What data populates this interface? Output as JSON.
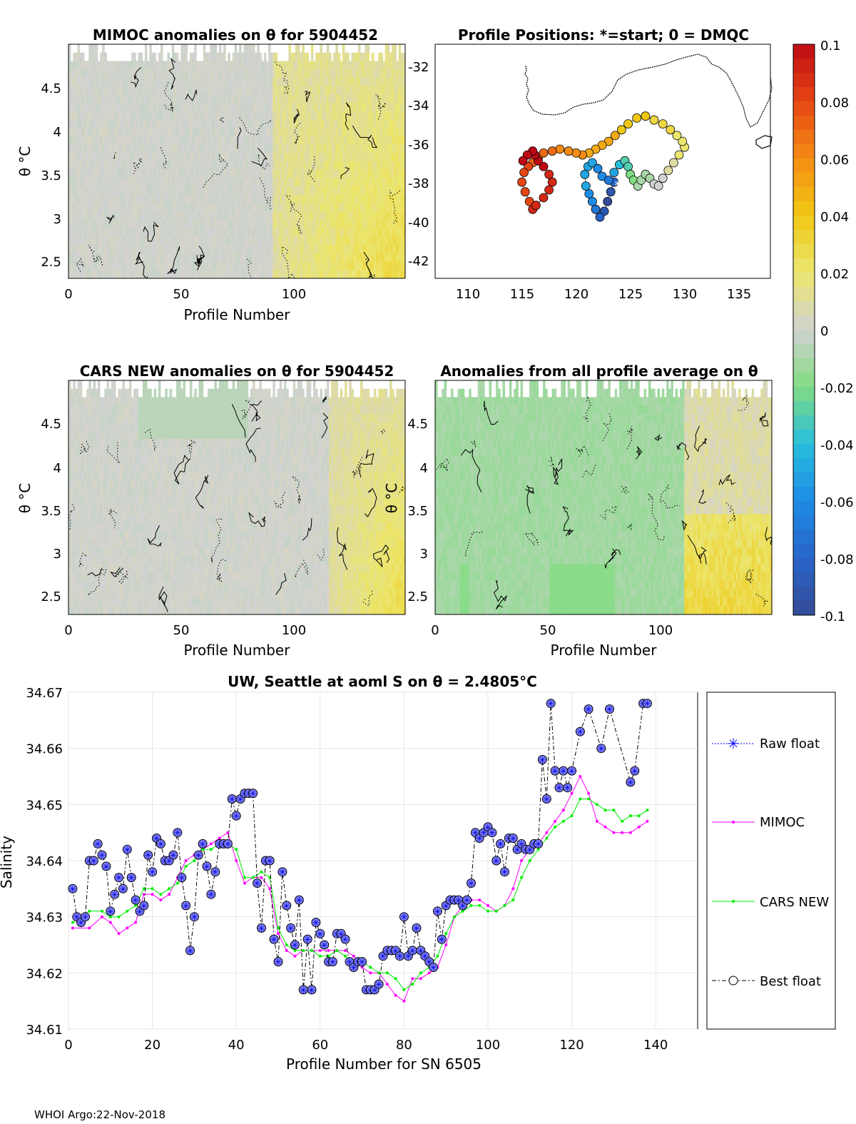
{
  "footer": "WHOI Argo:22-Nov-2018",
  "colorbar": {
    "ticks": [
      "0.1",
      "0.08",
      "0.06",
      "0.04",
      "0.02",
      "0",
      "-0.02",
      "-0.04",
      "-0.06",
      "-0.08",
      "-0.1"
    ],
    "range": [
      -0.1,
      0.1
    ]
  },
  "panels": {
    "mimoc": {
      "title": "MIMOC anomalies on θ  for 5904452",
      "ylabel": "θ °C",
      "xlabel": "Profile Number",
      "xticks": [
        "0",
        "50",
        "100"
      ],
      "yticks": [
        "4.5",
        "4",
        "3.5",
        "3",
        "2.5"
      ]
    },
    "map": {
      "title": "Profile Positions: *=start; 0 = DMQC",
      "xticks": [
        "110",
        "115",
        "120",
        "125",
        "130",
        "135"
      ],
      "yticks": [
        "-32",
        "-34",
        "-36",
        "-38",
        "-40",
        "-42"
      ]
    },
    "cars": {
      "title": "CARS NEW anomalies on θ for 5904452",
      "ylabel": "θ °C",
      "xlabel": "Profile Number",
      "xticks": [
        "0",
        "50",
        "100"
      ],
      "yticks": [
        "4.5",
        "4",
        "3.5",
        "3",
        "2.5"
      ]
    },
    "avg": {
      "title": "Anomalies from all profile average on θ",
      "ylabel": "θ °C",
      "xlabel": "Profile Number",
      "xticks": [
        "0",
        "50",
        "100"
      ],
      "yticks": [
        "4.5",
        "4",
        "3.5",
        "3",
        "2.5"
      ]
    }
  },
  "legend": {
    "raw": "Raw float",
    "mimoc": "MIMOC",
    "cars": "CARS NEW",
    "best": "Best float"
  },
  "colors": {
    "raw": "#0000ff",
    "mimoc": "#ff00ff",
    "cars": "#00ee00",
    "best": "#000000",
    "marker_fill": "#8080ff"
  },
  "chart_data": [
    {
      "type": "line",
      "title": "UW, Seattle at aoml S on θ = 2.4805°C",
      "xlabel": "Profile Number for SN 6505",
      "ylabel": "Salinity",
      "xlim": [
        0,
        150
      ],
      "ylim": [
        34.61,
        34.67
      ],
      "xticks": [
        "0",
        "20",
        "40",
        "60",
        "80",
        "100",
        "120",
        "140"
      ],
      "yticks": [
        "34.67",
        "34.66",
        "34.65",
        "34.64",
        "34.63",
        "34.62",
        "34.61"
      ],
      "grid": true,
      "legend_position": "right",
      "series": [
        {
          "name": "Best float",
          "x": [
            1,
            2,
            3,
            4,
            5,
            6,
            7,
            8,
            9,
            10,
            11,
            12,
            13,
            14,
            15,
            16,
            17,
            18,
            19,
            20,
            21,
            22,
            23,
            24,
            25,
            26,
            27,
            28,
            29,
            30,
            31,
            32,
            33,
            34,
            35,
            36,
            37,
            38,
            39,
            40,
            41,
            42,
            43,
            44,
            45,
            46,
            47,
            48,
            49,
            50,
            51,
            52,
            53,
            54,
            55,
            56,
            57,
            58,
            59,
            60,
            61,
            62,
            63,
            64,
            65,
            66,
            67,
            68,
            69,
            70,
            71,
            72,
            73,
            74,
            75,
            76,
            77,
            78,
            79,
            80,
            81,
            82,
            83,
            84,
            85,
            86,
            87,
            88,
            89,
            90,
            91,
            92,
            93,
            94,
            95,
            96,
            97,
            98,
            99,
            100,
            101,
            102,
            103,
            104,
            105,
            106,
            107,
            108,
            109,
            110,
            111,
            112,
            113,
            114,
            115,
            116,
            117,
            118,
            119,
            120,
            122,
            124,
            127,
            129,
            134,
            135,
            137,
            138
          ],
          "values": [
            34.635,
            34.63,
            34.629,
            34.63,
            34.64,
            34.64,
            34.643,
            34.641,
            34.639,
            34.631,
            34.634,
            34.637,
            34.635,
            34.642,
            34.637,
            34.633,
            34.631,
            34.632,
            34.641,
            34.638,
            34.644,
            34.643,
            34.64,
            34.64,
            34.641,
            34.645,
            34.637,
            34.632,
            34.624,
            34.63,
            34.641,
            34.643,
            34.639,
            34.634,
            34.638,
            34.643,
            34.643,
            34.643,
            34.651,
            34.648,
            34.651,
            34.652,
            34.652,
            34.652,
            34.636,
            34.628,
            34.64,
            34.64,
            34.626,
            34.622,
            34.638,
            34.632,
            34.628,
            34.625,
            34.633,
            34.617,
            34.626,
            34.617,
            34.629,
            34.627,
            34.625,
            34.622,
            34.622,
            34.627,
            34.627,
            34.626,
            34.622,
            34.621,
            34.622,
            34.622,
            34.617,
            34.617,
            34.617,
            34.618,
            34.623,
            34.624,
            34.624,
            34.624,
            34.623,
            34.63,
            34.623,
            34.624,
            34.628,
            34.624,
            34.623,
            34.622,
            34.621,
            34.631,
            34.626,
            34.632,
            34.633,
            34.633,
            34.633,
            34.632,
            34.633,
            34.636,
            34.645,
            34.644,
            34.645,
            34.646,
            34.645,
            34.64,
            34.643,
            34.638,
            34.644,
            34.644,
            34.642,
            34.643,
            34.642,
            34.642,
            34.643,
            34.643,
            34.658,
            34.651,
            34.668,
            34.656,
            34.653,
            34.656,
            34.653,
            34.656,
            34.663,
            34.667,
            34.66,
            34.667,
            34.654,
            34.656,
            34.668,
            34.668
          ]
        },
        {
          "name": "Raw float",
          "note": "identical to Best float"
        },
        {
          "name": "MIMOC",
          "x": [
            1,
            5,
            8,
            10,
            12,
            14,
            16,
            18,
            20,
            22,
            24,
            26,
            28,
            30,
            32,
            34,
            36,
            38,
            40,
            42,
            44,
            46,
            48,
            50,
            52,
            54,
            56,
            58,
            60,
            62,
            64,
            66,
            68,
            70,
            72,
            74,
            76,
            78,
            80,
            82,
            84,
            86,
            88,
            90,
            92,
            94,
            96,
            98,
            100,
            102,
            104,
            106,
            108,
            110,
            112,
            114,
            116,
            118,
            120,
            122,
            124,
            126,
            128,
            130,
            132,
            134,
            136,
            138
          ],
          "values": [
            34.628,
            34.628,
            34.63,
            34.629,
            34.627,
            34.628,
            34.629,
            34.634,
            34.634,
            34.633,
            34.634,
            34.637,
            34.64,
            34.641,
            34.642,
            34.643,
            34.644,
            34.645,
            34.64,
            34.636,
            34.637,
            34.637,
            34.635,
            34.627,
            34.624,
            34.623,
            34.624,
            34.624,
            34.624,
            34.624,
            34.624,
            34.624,
            34.623,
            34.621,
            34.62,
            34.62,
            34.618,
            34.616,
            34.615,
            34.619,
            34.619,
            34.62,
            34.621,
            34.625,
            34.63,
            34.632,
            34.633,
            34.633,
            34.632,
            34.631,
            34.632,
            34.635,
            34.64,
            34.642,
            34.643,
            34.645,
            34.647,
            34.649,
            34.652,
            34.655,
            34.652,
            34.647,
            34.646,
            34.645,
            34.645,
            34.645,
            34.646,
            34.647
          ]
        },
        {
          "name": "CARS NEW",
          "x": [
            1,
            5,
            8,
            10,
            12,
            14,
            16,
            18,
            20,
            22,
            24,
            26,
            28,
            30,
            32,
            34,
            36,
            38,
            40,
            42,
            44,
            46,
            48,
            50,
            52,
            54,
            56,
            58,
            60,
            62,
            64,
            66,
            68,
            70,
            72,
            74,
            76,
            78,
            80,
            82,
            84,
            86,
            88,
            90,
            92,
            94,
            96,
            98,
            100,
            102,
            104,
            106,
            108,
            110,
            112,
            114,
            116,
            118,
            120,
            122,
            124,
            126,
            128,
            130,
            132,
            134,
            136,
            138
          ],
          "values": [
            34.629,
            34.631,
            34.631,
            34.63,
            34.63,
            34.631,
            34.632,
            34.635,
            34.635,
            34.634,
            34.635,
            34.636,
            34.639,
            34.64,
            34.642,
            34.642,
            34.643,
            34.643,
            34.642,
            34.637,
            34.637,
            34.638,
            34.637,
            34.628,
            34.625,
            34.624,
            34.624,
            34.624,
            34.623,
            34.623,
            34.624,
            34.623,
            34.622,
            34.622,
            34.621,
            34.62,
            34.62,
            34.619,
            34.617,
            34.618,
            34.62,
            34.621,
            34.623,
            34.627,
            34.63,
            34.631,
            34.632,
            34.632,
            34.631,
            34.631,
            34.632,
            34.633,
            34.637,
            34.64,
            34.642,
            34.644,
            34.646,
            34.647,
            34.648,
            34.651,
            34.651,
            34.65,
            34.649,
            34.649,
            34.647,
            34.648,
            34.648,
            34.649
          ]
        }
      ]
    },
    {
      "type": "scatter",
      "title": "Profile Positions: *=start; 0 = DMQC",
      "xlim": [
        107,
        138
      ],
      "ylim": [
        -43,
        -31
      ],
      "note": "float track near south coast of Australia, colored by anomaly",
      "lon": [
        123.5,
        123.2,
        122.9,
        122.6,
        122.2,
        121.8,
        121.5,
        121.2,
        120.9,
        120.8,
        121.1,
        121.5,
        122.0,
        122.4,
        123.0,
        123.5,
        124.0,
        124.5,
        124.8,
        125.0,
        125.3,
        125.7,
        126.0,
        126.4,
        126.8,
        127.2,
        127.6,
        128.0,
        128.5,
        129.0,
        129.5,
        130.0,
        129.8,
        129.3,
        128.7,
        128.0,
        127.2,
        126.4,
        125.6,
        124.8,
        124.2,
        123.6,
        123.0,
        122.4,
        121.8,
        121.2,
        120.6,
        120.0,
        119.3,
        118.5,
        117.8,
        117.0,
        116.5,
        116.0,
        115.6,
        115.2,
        115.0,
        115.3,
        115.7,
        116.0,
        116.3,
        117.0,
        117.5,
        117.8,
        117.5,
        117.0,
        116.5,
        116.2,
        116.0,
        115.5,
        115.1
      ],
      "lat": [
        -38.0,
        -38.5,
        -39.0,
        -39.5,
        -39.8,
        -39.4,
        -39.0,
        -38.6,
        -38.2,
        -37.6,
        -37.2,
        -37.0,
        -37.3,
        -37.7,
        -37.9,
        -37.5,
        -37.1,
        -36.9,
        -37.2,
        -37.6,
        -37.9,
        -38.2,
        -37.9,
        -37.6,
        -37.8,
        -38.1,
        -38.2,
        -37.8,
        -37.4,
        -37.0,
        -36.6,
        -36.2,
        -35.9,
        -35.6,
        -35.3,
        -35.0,
        -34.8,
        -34.6,
        -34.7,
        -35.0,
        -35.3,
        -35.6,
        -35.9,
        -36.1,
        -36.3,
        -36.5,
        -36.6,
        -36.5,
        -36.4,
        -36.3,
        -36.4,
        -36.5,
        -36.8,
        -37.0,
        -37.2,
        -37.5,
        -38.0,
        -38.5,
        -39.0,
        -39.4,
        -39.2,
        -38.8,
        -38.4,
        -38.0,
        -37.6,
        -37.2,
        -36.9,
        -36.6,
        -36.4,
        -36.6,
        -36.9
      ],
      "anomaly": [
        -0.08,
        -0.09,
        -0.1,
        -0.09,
        -0.08,
        -0.07,
        -0.06,
        -0.06,
        -0.05,
        -0.05,
        -0.05,
        -0.05,
        -0.06,
        -0.06,
        -0.07,
        -0.05,
        -0.04,
        -0.03,
        -0.03,
        -0.02,
        -0.02,
        -0.01,
        -0.01,
        -0.01,
        -0.01,
        0.0,
        0.0,
        0.0,
        0.01,
        0.01,
        0.02,
        0.02,
        0.02,
        0.02,
        0.03,
        0.03,
        0.03,
        0.04,
        0.04,
        0.04,
        0.04,
        0.05,
        0.05,
        0.05,
        0.05,
        0.05,
        0.06,
        0.06,
        0.06,
        0.06,
        0.07,
        0.07,
        0.07,
        0.07,
        0.08,
        0.08,
        0.08,
        0.08,
        0.08,
        0.09,
        0.09,
        0.09,
        0.09,
        0.09,
        0.09,
        0.1,
        0.1,
        0.1,
        0.1,
        0.1,
        0.1
      ]
    }
  ]
}
